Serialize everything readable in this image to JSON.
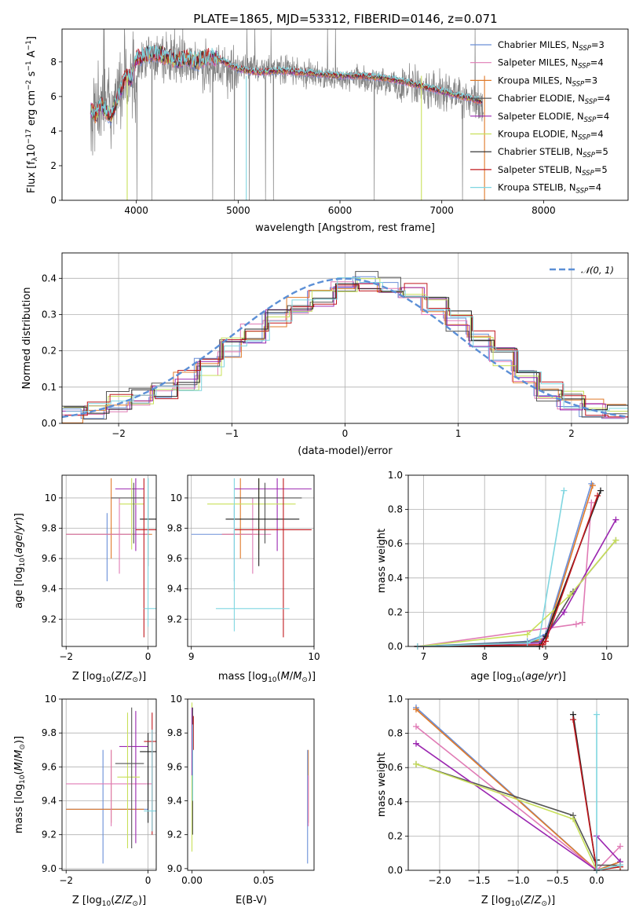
{
  "figure_title": "PLATE=1865, MJD=53312, FIBERID=0146, z=0.071",
  "chart_data": [
    {
      "id": "spectrum",
      "type": "line",
      "xlabel": "wavelength [Angstrom, rest frame]",
      "ylabel": "Flux [f",
      "ylabel_text": "Flux [fλ 10⁻¹⁷ erg cm⁻² s⁻¹ A⁻¹]",
      "xlim": [
        3270,
        8830
      ],
      "ylim": [
        0,
        9.9
      ],
      "xticks": [
        4000,
        5000,
        6000,
        7000,
        8000
      ],
      "yticks": [
        0,
        2,
        4,
        6,
        8
      ],
      "grid": false,
      "legend_placement": "right",
      "data_series": {
        "name": "data",
        "color": "#808080",
        "x": [
          3550,
          3700,
          3900,
          4100,
          4300,
          4500,
          4700,
          4900,
          5100,
          5300,
          5500,
          5700,
          5900,
          6100,
          6300,
          6500,
          6700,
          6900,
          7100,
          7300,
          7400
        ],
        "y": [
          5.2,
          5.5,
          6.8,
          8.3,
          8.1,
          8.0,
          7.8,
          7.6,
          7.7,
          7.6,
          7.6,
          7.3,
          7.1,
          7.0,
          6.9,
          6.8,
          6.6,
          6.4,
          6.2,
          5.9,
          5.5
        ]
      },
      "model_x": [
        3550,
        3600,
        3650,
        3700,
        3750,
        3800,
        3850,
        3900,
        3950,
        4000,
        4100,
        4200,
        4300,
        4400,
        4500,
        4600,
        4700,
        4800,
        4900,
        5000,
        5200,
        5400,
        5600,
        5800,
        6000,
        6200,
        6400,
        6600,
        6800,
        7000,
        7200,
        7400
      ],
      "model_y": [
        5.3,
        4.9,
        5.5,
        5.2,
        4.8,
        5.6,
        6.5,
        7.2,
        7.0,
        8.2,
        8.4,
        8.5,
        8.3,
        8.1,
        8.2,
        8.0,
        8.3,
        8.2,
        7.9,
        7.6,
        7.4,
        7.5,
        7.4,
        7.3,
        7.2,
        7.2,
        7.1,
        6.9,
        6.6,
        6.3,
        6.0,
        5.7
      ],
      "series": [
        {
          "name": "Chabrier MILES, N",
          "nssp": "SSP",
          "eq": "=3",
          "color": "#6a8fd8"
        },
        {
          "name": "Salpeter MILES, N",
          "nssp": "SSP",
          "eq": "=4",
          "color": "#e07bb5"
        },
        {
          "name": "Kroupa MILES, N",
          "nssp": "SSP",
          "eq": "=3",
          "color": "#e07a2a"
        },
        {
          "name": "Chabrier ELODIE, N",
          "nssp": "SSP",
          "eq": "=4",
          "color": "#555555"
        },
        {
          "name": "Salpeter ELODIE, N",
          "nssp": "SSP",
          "eq": "=4",
          "color": "#9b27b0"
        },
        {
          "name": "Kroupa ELODIE, N",
          "nssp": "SSP",
          "eq": "=4",
          "color": "#c8e05a"
        },
        {
          "name": "Chabrier STELIB, N",
          "nssp": "SSP",
          "eq": "=5",
          "color": "#222222"
        },
        {
          "name": "Salpeter STELIB, N",
          "nssp": "SSP",
          "eq": "=5",
          "color": "#c0181e"
        },
        {
          "name": "Kroupa STELIB, N",
          "nssp": "SSP",
          "eq": "=4",
          "color": "#7fd6e0"
        }
      ],
      "spikes": [
        {
          "x": 3910,
          "color": "#c8e05a"
        },
        {
          "x": 5080,
          "color": "#7fd6e0"
        },
        {
          "x": 6800,
          "color": "#c8e05a"
        },
        {
          "x": 7420,
          "color": "#e07a2a"
        }
      ]
    },
    {
      "id": "residuals",
      "type": "line",
      "xlabel": "(data-model)/error",
      "ylabel": "Normed distribution",
      "xlim": [
        -2.5,
        2.5
      ],
      "ylim": [
        0,
        0.47
      ],
      "xticks": [
        -2,
        -1,
        0,
        1,
        2
      ],
      "yticks": [
        0.0,
        0.1,
        0.2,
        0.3,
        0.4
      ],
      "grid": true,
      "legend_placement": "top-right",
      "legend": "𝒩(0, 1)",
      "bins": [
        -2.5,
        -2.3,
        -2.1,
        -1.9,
        -1.7,
        -1.5,
        -1.3,
        -1.1,
        -0.9,
        -0.7,
        -0.5,
        -0.3,
        -0.1,
        0.1,
        0.3,
        0.5,
        0.7,
        0.9,
        1.1,
        1.3,
        1.5,
        1.7,
        1.9,
        2.1,
        2.3,
        2.5
      ],
      "hist_base": [
        0.03,
        0.04,
        0.06,
        0.07,
        0.09,
        0.12,
        0.16,
        0.21,
        0.25,
        0.29,
        0.33,
        0.35,
        0.38,
        0.39,
        0.39,
        0.36,
        0.32,
        0.28,
        0.23,
        0.18,
        0.13,
        0.09,
        0.06,
        0.04,
        0.03
      ],
      "gauss_color": "#5b8fd6"
    },
    {
      "id": "age-vs-Z",
      "type": "scatter",
      "xlabel": "Z [log",
      "ylabel": "age  [log",
      "xlim": [
        -2.1,
        0.2
      ],
      "ylim": [
        9.02,
        10.15
      ],
      "xticks": [
        -2,
        0
      ],
      "yticks": [
        9.2,
        9.4,
        9.6,
        9.8,
        10.0
      ],
      "grid": true,
      "points": [
        {
          "x": -1.0,
          "y": 9.76,
          "ex": [
            -2.0,
            0.0
          ],
          "ey": [
            9.45,
            9.9
          ],
          "color": "#6a8fd8"
        },
        {
          "x": -0.9,
          "y": 9.76,
          "ex": [
            -2.0,
            0.1
          ],
          "ey": [
            9.6,
            10.13
          ],
          "color": "#e07a2a"
        },
        {
          "x": -0.7,
          "y": 9.76,
          "ex": [
            -2.0,
            0.0
          ],
          "ey": [
            9.5,
            10.0
          ],
          "color": "#e07bb5"
        },
        {
          "x": -0.3,
          "y": 10.06,
          "ex": [
            -0.8,
            -0.1
          ],
          "ey": [
            9.65,
            10.13
          ],
          "color": "#9b27b0"
        },
        {
          "x": -0.4,
          "y": 9.96,
          "ex": [
            -0.7,
            -0.1
          ],
          "ey": [
            9.66,
            10.13
          ],
          "color": "#c8e05a"
        },
        {
          "x": -0.35,
          "y": 10.0,
          "ex": [
            -0.9,
            -0.1
          ],
          "ey": [
            9.7,
            10.1
          ],
          "color": "#555555"
        },
        {
          "x": 0.0,
          "y": 9.86,
          "ex": [
            -0.2,
            0.2
          ],
          "ey": [
            9.55,
            10.13
          ],
          "color": "#222222"
        },
        {
          "x": -0.1,
          "y": 9.79,
          "ex": [
            -0.3,
            0.2
          ],
          "ey": [
            9.08,
            10.13
          ],
          "color": "#c0181e"
        },
        {
          "x": 0.0,
          "y": 9.27,
          "ex": [
            -0.1,
            0.2
          ],
          "ey": [
            9.15,
            10.13
          ],
          "color": "#7fd6e0"
        }
      ]
    },
    {
      "id": "age-vs-mass",
      "type": "scatter",
      "xlabel": "mass [log",
      "ylabel": "",
      "xlim": [
        8.97,
        10.0
      ],
      "ylim": [
        9.02,
        10.15
      ],
      "xticks": [
        9,
        10
      ],
      "yticks": [
        9.2,
        9.4,
        9.6,
        9.8,
        10.0
      ],
      "grid": true,
      "points": [
        {
          "x": 9.35,
          "y": 9.76,
          "ex": [
            9.0,
            9.5
          ],
          "ey": [
            9.45,
            9.95
          ],
          "color": "#6a8fd8"
        },
        {
          "x": 9.4,
          "y": 9.76,
          "ex": [
            9.25,
            9.55
          ],
          "ey": [
            9.6,
            10.13
          ],
          "color": "#e07a2a"
        },
        {
          "x": 9.5,
          "y": 9.76,
          "ex": [
            9.25,
            9.65
          ],
          "ey": [
            9.5,
            10.0
          ],
          "color": "#e07bb5"
        },
        {
          "x": 9.7,
          "y": 10.06,
          "ex": [
            9.35,
            9.98
          ],
          "ey": [
            9.65,
            10.13
          ],
          "color": "#9b27b0"
        },
        {
          "x": 9.55,
          "y": 9.96,
          "ex": [
            9.13,
            9.85
          ],
          "ey": [
            9.66,
            10.13
          ],
          "color": "#c8e05a"
        },
        {
          "x": 9.6,
          "y": 10.0,
          "ex": [
            9.35,
            9.9
          ],
          "ey": [
            9.7,
            10.1
          ],
          "color": "#555555"
        },
        {
          "x": 9.55,
          "y": 9.86,
          "ex": [
            9.28,
            9.88
          ],
          "ey": [
            9.55,
            10.13
          ],
          "color": "#222222"
        },
        {
          "x": 9.75,
          "y": 9.79,
          "ex": [
            9.35,
            9.98
          ],
          "ey": [
            9.08,
            10.13
          ],
          "color": "#c0181e"
        },
        {
          "x": 9.35,
          "y": 9.27,
          "ex": [
            9.2,
            9.8
          ],
          "ey": [
            9.12,
            10.13
          ],
          "color": "#7fd6e0"
        }
      ]
    },
    {
      "id": "mass-weight-vs-age",
      "type": "line",
      "xlabel": "age  [log",
      "ylabel": "mass weight",
      "xlim": [
        6.75,
        10.35
      ],
      "ylim": [
        0,
        1.0
      ],
      "xticks": [
        7,
        8,
        9,
        10
      ],
      "yticks": [
        0.0,
        0.2,
        0.4,
        0.6,
        0.8,
        1.0
      ],
      "grid": true,
      "series": [
        {
          "color": "#6a8fd8",
          "x": [
            6.9,
            8.7,
            9.0,
            9.75
          ],
          "y": [
            0.0,
            0.03,
            0.07,
            0.95
          ]
        },
        {
          "color": "#e07a2a",
          "x": [
            6.9,
            8.7,
            9.0,
            9.77
          ],
          "y": [
            0.0,
            0.02,
            0.05,
            0.94
          ]
        },
        {
          "color": "#e07bb5",
          "x": [
            6.9,
            9.5,
            9.6,
            9.75
          ],
          "y": [
            0.0,
            0.13,
            0.14,
            0.84
          ]
        },
        {
          "color": "#555555",
          "x": [
            6.9,
            8.95,
            9.45,
            10.15
          ],
          "y": [
            0.0,
            0.03,
            0.32,
            0.62
          ]
        },
        {
          "color": "#9b27b0",
          "x": [
            6.9,
            8.9,
            9.3,
            10.15
          ],
          "y": [
            0.0,
            0.02,
            0.2,
            0.74
          ]
        },
        {
          "color": "#c8e05a",
          "x": [
            6.9,
            8.7,
            9.4,
            10.15
          ],
          "y": [
            0.0,
            0.07,
            0.3,
            0.62
          ]
        },
        {
          "color": "#222222",
          "x": [
            6.9,
            8.9,
            9.0,
            9.9
          ],
          "y": [
            0.0,
            0.0,
            0.06,
            0.91
          ]
        },
        {
          "color": "#c0181e",
          "x": [
            6.9,
            8.95,
            9.0,
            9.85
          ],
          "y": [
            0.0,
            0.01,
            0.03,
            0.88
          ]
        },
        {
          "color": "#7fd6e0",
          "x": [
            6.9,
            8.7,
            8.9,
            9.3
          ],
          "y": [
            0.0,
            0.02,
            0.05,
            0.91
          ]
        }
      ]
    },
    {
      "id": "mass-vs-Z",
      "type": "scatter",
      "xlabel": "Z [log",
      "ylabel": "mass [log",
      "xlim": [
        -2.1,
        0.2
      ],
      "ylim": [
        8.99,
        10.0
      ],
      "xticks": [
        -2,
        0
      ],
      "yticks": [
        9.0,
        9.2,
        9.4,
        9.6,
        9.8,
        10.0
      ],
      "grid": true,
      "points": [
        {
          "x": -1.1,
          "y": 9.35,
          "ex": [
            -2.0,
            0.0
          ],
          "ey": [
            9.03,
            9.7
          ],
          "color": "#6a8fd8"
        },
        {
          "x": -0.9,
          "y": 9.35,
          "ex": [
            -2.0,
            -0.1
          ],
          "ey": [
            9.27,
            9.7
          ],
          "color": "#e07a2a"
        },
        {
          "x": -0.9,
          "y": 9.5,
          "ex": [
            -2.0,
            0.1
          ],
          "ey": [
            9.25,
            9.7
          ],
          "color": "#e07bb5"
        },
        {
          "x": -0.3,
          "y": 9.72,
          "ex": [
            -0.7,
            0.0
          ],
          "ey": [
            9.15,
            9.93
          ],
          "color": "#9b27b0"
        },
        {
          "x": -0.5,
          "y": 9.54,
          "ex": [
            -0.75,
            -0.2
          ],
          "ey": [
            9.12,
            9.92
          ],
          "color": "#c8e05a"
        },
        {
          "x": -0.4,
          "y": 9.62,
          "ex": [
            -0.8,
            -0.1
          ],
          "ey": [
            9.12,
            9.95
          ],
          "color": "#555555"
        },
        {
          "x": 0.0,
          "y": 9.69,
          "ex": [
            -0.2,
            0.2
          ],
          "ey": [
            9.27,
            9.8
          ],
          "color": "#222222"
        },
        {
          "x": 0.1,
          "y": 9.75,
          "ex": [
            -0.1,
            0.2
          ],
          "ey": [
            9.2,
            9.92
          ],
          "color": "#c0181e"
        },
        {
          "x": 0.1,
          "y": 9.34,
          "ex": [
            -0.1,
            0.2
          ],
          "ey": [
            9.22,
            9.82
          ],
          "color": "#7fd6e0"
        }
      ]
    },
    {
      "id": "mass-vs-EBV",
      "type": "scatter",
      "xlabel": "E(B-V)",
      "ylabel": "",
      "xlim": [
        -0.003,
        0.085
      ],
      "ylim": [
        8.99,
        10.0
      ],
      "xticks": [
        0.0,
        0.05
      ],
      "yticks": [
        9.0,
        9.2,
        9.4,
        9.6,
        9.8,
        10.0
      ],
      "xticklabels": [
        "0.00",
        "0.05"
      ],
      "grid": false,
      "vsegs": [
        {
          "x": 0.0,
          "ey": [
            9.1,
            9.98
          ],
          "color": "#c8e05a"
        },
        {
          "x": 0.0,
          "ey": [
            9.55,
            9.95
          ],
          "color": "#9b27b0"
        },
        {
          "x": 0.0005,
          "ey": [
            9.2,
            9.95
          ],
          "color": "#555555"
        },
        {
          "x": 0.001,
          "ey": [
            9.7,
            9.9
          ],
          "color": "#c0181e"
        },
        {
          "x": 0.0005,
          "ey": [
            9.4,
            9.85
          ],
          "color": "#7fd6e0"
        },
        {
          "x": 0.081,
          "ey": [
            9.27,
            9.7
          ],
          "color": "#e07a2a"
        },
        {
          "x": 0.0805,
          "ey": [
            9.03,
            9.7
          ],
          "color": "#6a8fd8"
        },
        {
          "x": 0.081,
          "ey": [
            9.25,
            9.55
          ],
          "color": "#e07bb5"
        }
      ]
    },
    {
      "id": "mass-weight-vs-Z",
      "type": "line",
      "xlabel": "Z [log",
      "ylabel": "mass weight",
      "xlim": [
        -2.4,
        0.4
      ],
      "ylim": [
        0,
        1.0
      ],
      "xticks": [
        -2.0,
        -1.5,
        -1.0,
        -0.5,
        0.0
      ],
      "yticks": [
        0.0,
        0.2,
        0.4,
        0.6,
        0.8,
        1.0
      ],
      "xticklabels": [
        "−2.0",
        "−1.5",
        "−1.0",
        "−0.5",
        "0.0"
      ],
      "grid": true,
      "series": [
        {
          "color": "#6a8fd8",
          "x": [
            -2.3,
            0.0,
            0.3
          ],
          "y": [
            0.95,
            0.0,
            0.05
          ]
        },
        {
          "color": "#e07a2a",
          "x": [
            -2.3,
            0.0,
            0.3
          ],
          "y": [
            0.94,
            0.0,
            0.05
          ]
        },
        {
          "color": "#e07bb5",
          "x": [
            -2.3,
            0.0,
            0.3
          ],
          "y": [
            0.84,
            0.0,
            0.14
          ]
        },
        {
          "color": "#555555",
          "x": [
            -2.3,
            -0.3,
            0.0,
            0.3
          ],
          "y": [
            0.62,
            0.32,
            0.03,
            0.03
          ]
        },
        {
          "color": "#9b27b0",
          "x": [
            -2.3,
            0.0,
            0.0,
            0.3
          ],
          "y": [
            0.74,
            0.0,
            0.2,
            0.05
          ]
        },
        {
          "color": "#c8e05a",
          "x": [
            -2.3,
            -0.3,
            0.0,
            0.3
          ],
          "y": [
            0.62,
            0.3,
            0.0,
            0.02
          ]
        },
        {
          "color": "#222222",
          "x": [
            -0.3,
            0.0,
            0.0
          ],
          "y": [
            0.91,
            0.0,
            0.06
          ]
        },
        {
          "color": "#c0181e",
          "x": [
            -0.3,
            0.0,
            0.3
          ],
          "y": [
            0.88,
            0.0,
            0.02
          ]
        },
        {
          "color": "#7fd6e0",
          "x": [
            0.0,
            0.0,
            0.3
          ],
          "y": [
            0.91,
            0.0,
            0.03
          ]
        }
      ]
    }
  ]
}
